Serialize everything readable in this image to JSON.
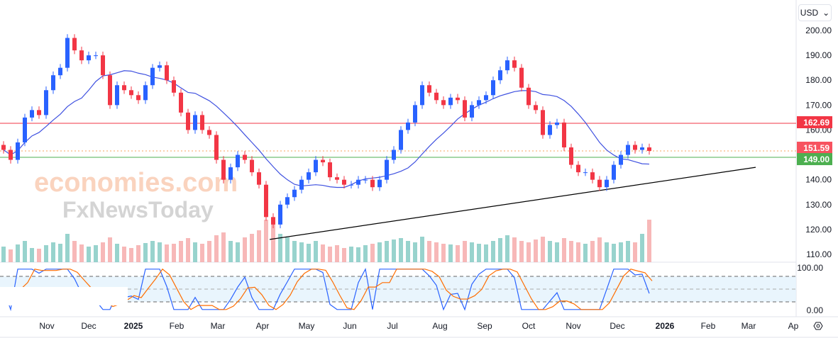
{
  "currency": {
    "label": "USD",
    "chevron": "⌄"
  },
  "watermark": {
    "line1": "economies.com",
    "line2": "FxNewsToday"
  },
  "chart_data": {
    "type": "candlestick",
    "period": "2024-10 to 2025-12 (daily, sampled)",
    "closes": [
      152,
      148,
      155,
      165,
      168,
      166,
      176,
      182,
      185,
      197,
      192,
      188,
      190,
      190,
      182,
      170,
      178,
      176,
      174,
      172,
      178,
      185,
      186,
      180,
      175,
      167,
      160,
      166,
      160,
      158,
      148,
      140,
      145,
      150,
      148,
      143,
      138,
      125,
      122,
      130,
      133,
      136,
      140,
      143,
      148,
      147,
      141,
      140,
      138,
      138,
      140,
      140,
      137,
      140,
      148,
      152,
      160,
      163,
      170,
      178,
      175,
      172,
      170,
      173,
      172,
      165,
      170,
      172,
      174,
      180,
      184,
      188,
      185,
      177,
      170,
      168,
      158,
      162,
      163,
      153,
      146,
      143,
      143,
      140,
      137,
      140,
      146,
      150,
      154,
      152,
      153,
      151.59
    ],
    "volume": [
      22,
      18,
      25,
      30,
      20,
      19,
      24,
      28,
      26,
      40,
      30,
      25,
      22,
      24,
      28,
      35,
      26,
      22,
      20,
      24,
      27,
      30,
      28,
      25,
      26,
      30,
      34,
      28,
      26,
      30,
      38,
      42,
      30,
      28,
      35,
      40,
      45,
      60,
      55,
      40,
      35,
      30,
      28,
      26,
      30,
      25,
      22,
      24,
      20,
      22,
      21,
      24,
      26,
      28,
      30,
      32,
      34,
      30,
      28,
      36,
      30,
      28,
      26,
      25,
      24,
      30,
      28,
      26,
      25,
      30,
      34,
      38,
      35,
      30,
      28,
      32,
      36,
      30,
      28,
      34,
      30,
      28,
      26,
      30,
      35,
      28,
      26,
      28,
      30,
      28,
      40,
      60
    ],
    "y_axis": {
      "ticks": [
        "200.00",
        "190.00",
        "180.00",
        "170.00",
        "160.00",
        "140.00",
        "130.00",
        "120.00",
        "110.00"
      ],
      "range": [
        110,
        200
      ]
    },
    "x_axis": {
      "ticks": [
        "Nov",
        "Dec",
        "2025",
        "Feb",
        "Mar",
        "Apr",
        "May",
        "Jun",
        "Jul",
        "Aug",
        "Sep",
        "Oct",
        "Nov",
        "Dec",
        "2026",
        "Feb",
        "Mar",
        "Ap"
      ]
    },
    "horizontal_lines": [
      {
        "label": "162.69",
        "value": 162.69,
        "color": "#f23645"
      },
      {
        "label": "151.59",
        "value": 151.59,
        "color": "#f7525f",
        "style": "last-price"
      },
      {
        "label": "149.00",
        "value": 149.0,
        "color": "#4caf50"
      }
    ],
    "trendline": {
      "from": [
        116,
        "2025-04-07"
      ],
      "to": [
        145,
        "2026-03-10"
      ],
      "color": "#000000"
    },
    "moving_average": {
      "color": "#3f51e0"
    },
    "stochastic": {
      "axis_ticks": [
        "100.00",
        "0.00"
      ],
      "levels": [
        80,
        50,
        20
      ],
      "k_color": "#2962ff",
      "d_color": "#ff6d00"
    },
    "colors": {
      "up": "#2962ff",
      "down": "#f23645"
    }
  }
}
